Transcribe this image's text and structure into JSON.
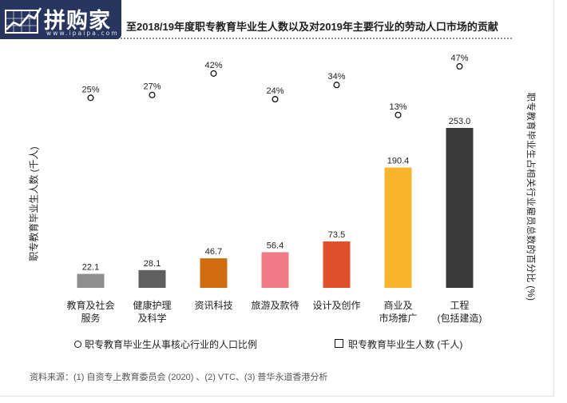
{
  "logo": {
    "name": "拼购家",
    "url": "www.ipaipa.com"
  },
  "chart_data": {
    "type": "bar",
    "title": "至2018/19年度职专教育毕业生人数以及对2019年主要行业的劳动人口市场的贡献",
    "ylabel": "职专教育毕业生人数 (千人)",
    "y2label": "职专教育毕业生占相关行业雇员总数的百分比 (%)",
    "categories": [
      [
        "教育及社会",
        "服务"
      ],
      [
        "健康护理",
        "及科学"
      ],
      [
        "资讯科技"
      ],
      [
        "旅游及款待"
      ],
      [
        "设计及创作"
      ],
      [
        "商业及",
        "市场推广"
      ],
      [
        "工程",
        "(包括建造)"
      ]
    ],
    "series": [
      {
        "name": "职专教育毕业生人数 (千人)",
        "type": "bar",
        "values": [
          22.1,
          28.1,
          46.7,
          56.4,
          73.5,
          190.4,
          253.0
        ],
        "labels": [
          "22.1",
          "28.1",
          "46.7",
          "56.4",
          "73.5",
          "190.4",
          "253.0"
        ],
        "colors": [
          "#8e8e8e",
          "#5f5f5f",
          "#d06d10",
          "#ee7b86",
          "#e1502d",
          "#f8b52c",
          "#3a3a3a"
        ]
      },
      {
        "name": "职专教育毕业生从事核心行业的人口比例",
        "type": "scatter",
        "marker": "hollow-circle",
        "values": [
          25,
          27,
          42,
          24,
          34,
          13,
          47
        ],
        "labels": [
          "25%",
          "27%",
          "42%",
          "24%",
          "34%",
          "13%",
          "47%"
        ]
      }
    ],
    "ylim": [
      0,
      253
    ],
    "y2lim": [
      0,
      47
    ],
    "grid": false,
    "legend": "bottom"
  },
  "source": "资料来源：(1) 自资专上教育委员会 (2020) 、(2) VTC、(3) 普华永道香港分析"
}
